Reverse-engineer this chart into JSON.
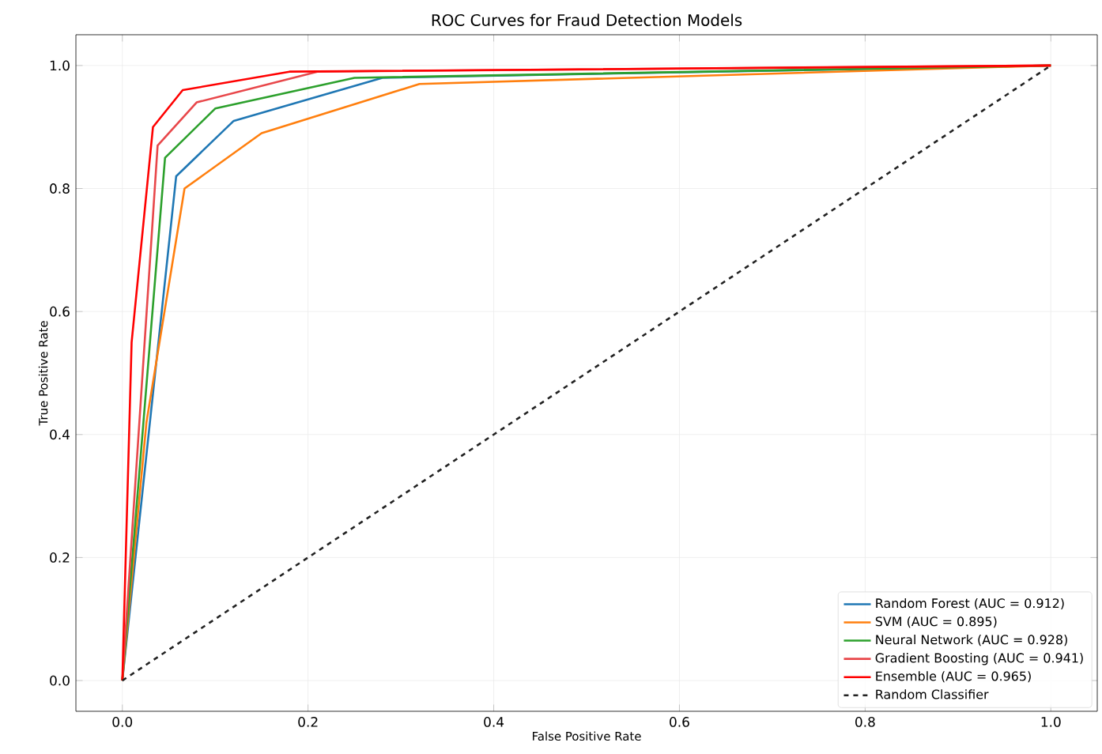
{
  "chart_data": {
    "type": "line",
    "title": "ROC Curves for Fraud Detection Models",
    "xlabel": "False Positive Rate",
    "ylabel": "True Positive Rate",
    "xlim": [
      -0.05,
      1.05
    ],
    "ylim": [
      -0.05,
      1.05
    ],
    "xticks": [
      {
        "value": 0,
        "label": "0.0"
      },
      0.2,
      0.4,
      0.6,
      0.8,
      {
        "value": 1,
        "label": "1.0"
      }
    ],
    "yticks": [
      {
        "value": 0,
        "label": "0.0"
      },
      0.2,
      0.4,
      0.6,
      0.8,
      {
        "value": 1,
        "label": "1.0"
      }
    ],
    "grid": true,
    "legend": "bottom right",
    "series": [
      {
        "name": "Random Forest (AUC = 0.912)",
        "color": "#1f77b4",
        "x": [
          0,
          0.058,
          0.12,
          0.28,
          1
        ],
        "values": [
          0,
          0.82,
          0.91,
          0.98,
          1
        ]
      },
      {
        "name": "SVM (AUC = 0.895)",
        "color": "#ff7f0e",
        "x": [
          0,
          0.026,
          0.067,
          0.15,
          0.32,
          1
        ],
        "values": [
          0,
          0.42,
          0.8,
          0.89,
          0.97,
          1
        ]
      },
      {
        "name": "Neural Network (AUC = 0.928)",
        "color": "#2ca02c",
        "x": [
          0,
          0.046,
          0.1,
          0.25,
          1
        ],
        "values": [
          0,
          0.85,
          0.93,
          0.98,
          1
        ]
      },
      {
        "name": "Gradient Boosting (AUC = 0.941)",
        "color": "#e8474a",
        "x": [
          0,
          0.038,
          0.08,
          0.21,
          1
        ],
        "values": [
          0,
          0.87,
          0.94,
          0.99,
          1
        ]
      },
      {
        "name": "Ensemble (AUC = 0.965)",
        "color": "#ff0000",
        "x": [
          0,
          0.01,
          0.033,
          0.065,
          0.18,
          1
        ],
        "values": [
          0,
          0.55,
          0.9,
          0.96,
          0.99,
          1
        ]
      },
      {
        "name": "Random Classifier",
        "color": "#222222",
        "line_style": "dashed",
        "x": [
          0,
          1
        ],
        "values": [
          0,
          1
        ]
      }
    ]
  }
}
